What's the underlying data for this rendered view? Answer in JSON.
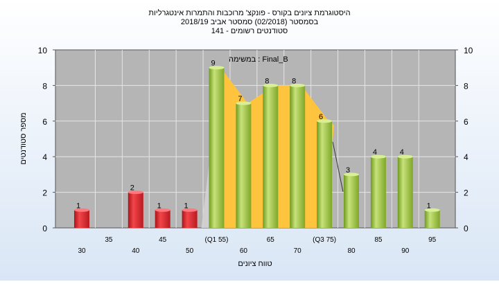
{
  "title_lines": [
    "היסטוגרמת ציונים בקורס - פונקצ' מרוכבות והתמרות אינטגרליות",
    "בסמסטר  (02/2018)  סמסטר אביב 2018/19",
    "סטודנטים רשומים - 141"
  ],
  "colors": {
    "fail_bar": "#e8232a",
    "pass_bar": "#9cc63c",
    "iqr_band": "#ffc43d",
    "plot_bg": "#b5b5b5"
  },
  "chart_data": {
    "type": "bar",
    "title": "היסטוגרמת ציונים בקורס - פונקצ' מרוכבות והתמרות אינטגרליות",
    "xlabel": "טווח ציונים",
    "ylabel": "מספר סטודנטים",
    "ylim": [
      0,
      10
    ],
    "y_ticks": [
      "0",
      "2",
      "4",
      "6",
      "8",
      "10"
    ],
    "grid": true,
    "annotation": "במשימה : Final_B",
    "x_tick_labels": [
      "30",
      "35",
      "40",
      "45",
      "50",
      "(Q1 55)",
      "60",
      "65",
      "70",
      "(Q3 75)",
      "80",
      "85",
      "90",
      "95"
    ],
    "categories": [
      "30",
      "35",
      "40",
      "45",
      "50",
      "55",
      "60",
      "65",
      "70",
      "75",
      "80",
      "85",
      "90",
      "95"
    ],
    "values": [
      1,
      0,
      2,
      1,
      1,
      9,
      7,
      8,
      8,
      6,
      3,
      4,
      4,
      1
    ],
    "q1": 55,
    "q3": 75
  }
}
